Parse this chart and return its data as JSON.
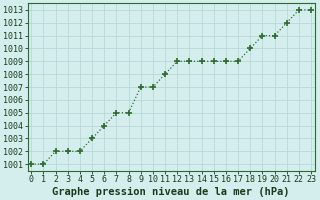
{
  "x": [
    0,
    1,
    2,
    3,
    4,
    5,
    6,
    7,
    8,
    9,
    10,
    11,
    12,
    13,
    14,
    15,
    16,
    17,
    18,
    19,
    20,
    21,
    22,
    23
  ],
  "y": [
    1001,
    1001,
    1002,
    1002,
    1002,
    1003,
    1004,
    1005,
    1005,
    1007,
    1007,
    1008,
    1009,
    1009,
    1009,
    1009,
    1009,
    1009,
    1010,
    1011,
    1011,
    1012,
    1013,
    1013
  ],
  "line_color": "#2d6a2d",
  "marker": "+",
  "marker_size": 4,
  "marker_lw": 1.2,
  "line_width": 0.9,
  "bg_color": "#d4eeee",
  "grid_color": "#b8d8d8",
  "xlabel": "Graphe pression niveau de la mer (hPa)",
  "xlabel_fontsize": 7.5,
  "xlabel_color": "#1a3a1a",
  "ylabel_min": 1001,
  "ylabel_max": 1013,
  "ytick_step": 1,
  "xtick_labels": [
    "0",
    "1",
    "2",
    "3",
    "4",
    "5",
    "6",
    "7",
    "8",
    "9",
    "10",
    "11",
    "12",
    "13",
    "14",
    "15",
    "16",
    "17",
    "18",
    "19",
    "20",
    "21",
    "22",
    "23"
  ],
  "tick_fontsize": 6.0,
  "tick_color": "#1a3a1a",
  "xlim_min": -0.3,
  "xlim_max": 23.3
}
